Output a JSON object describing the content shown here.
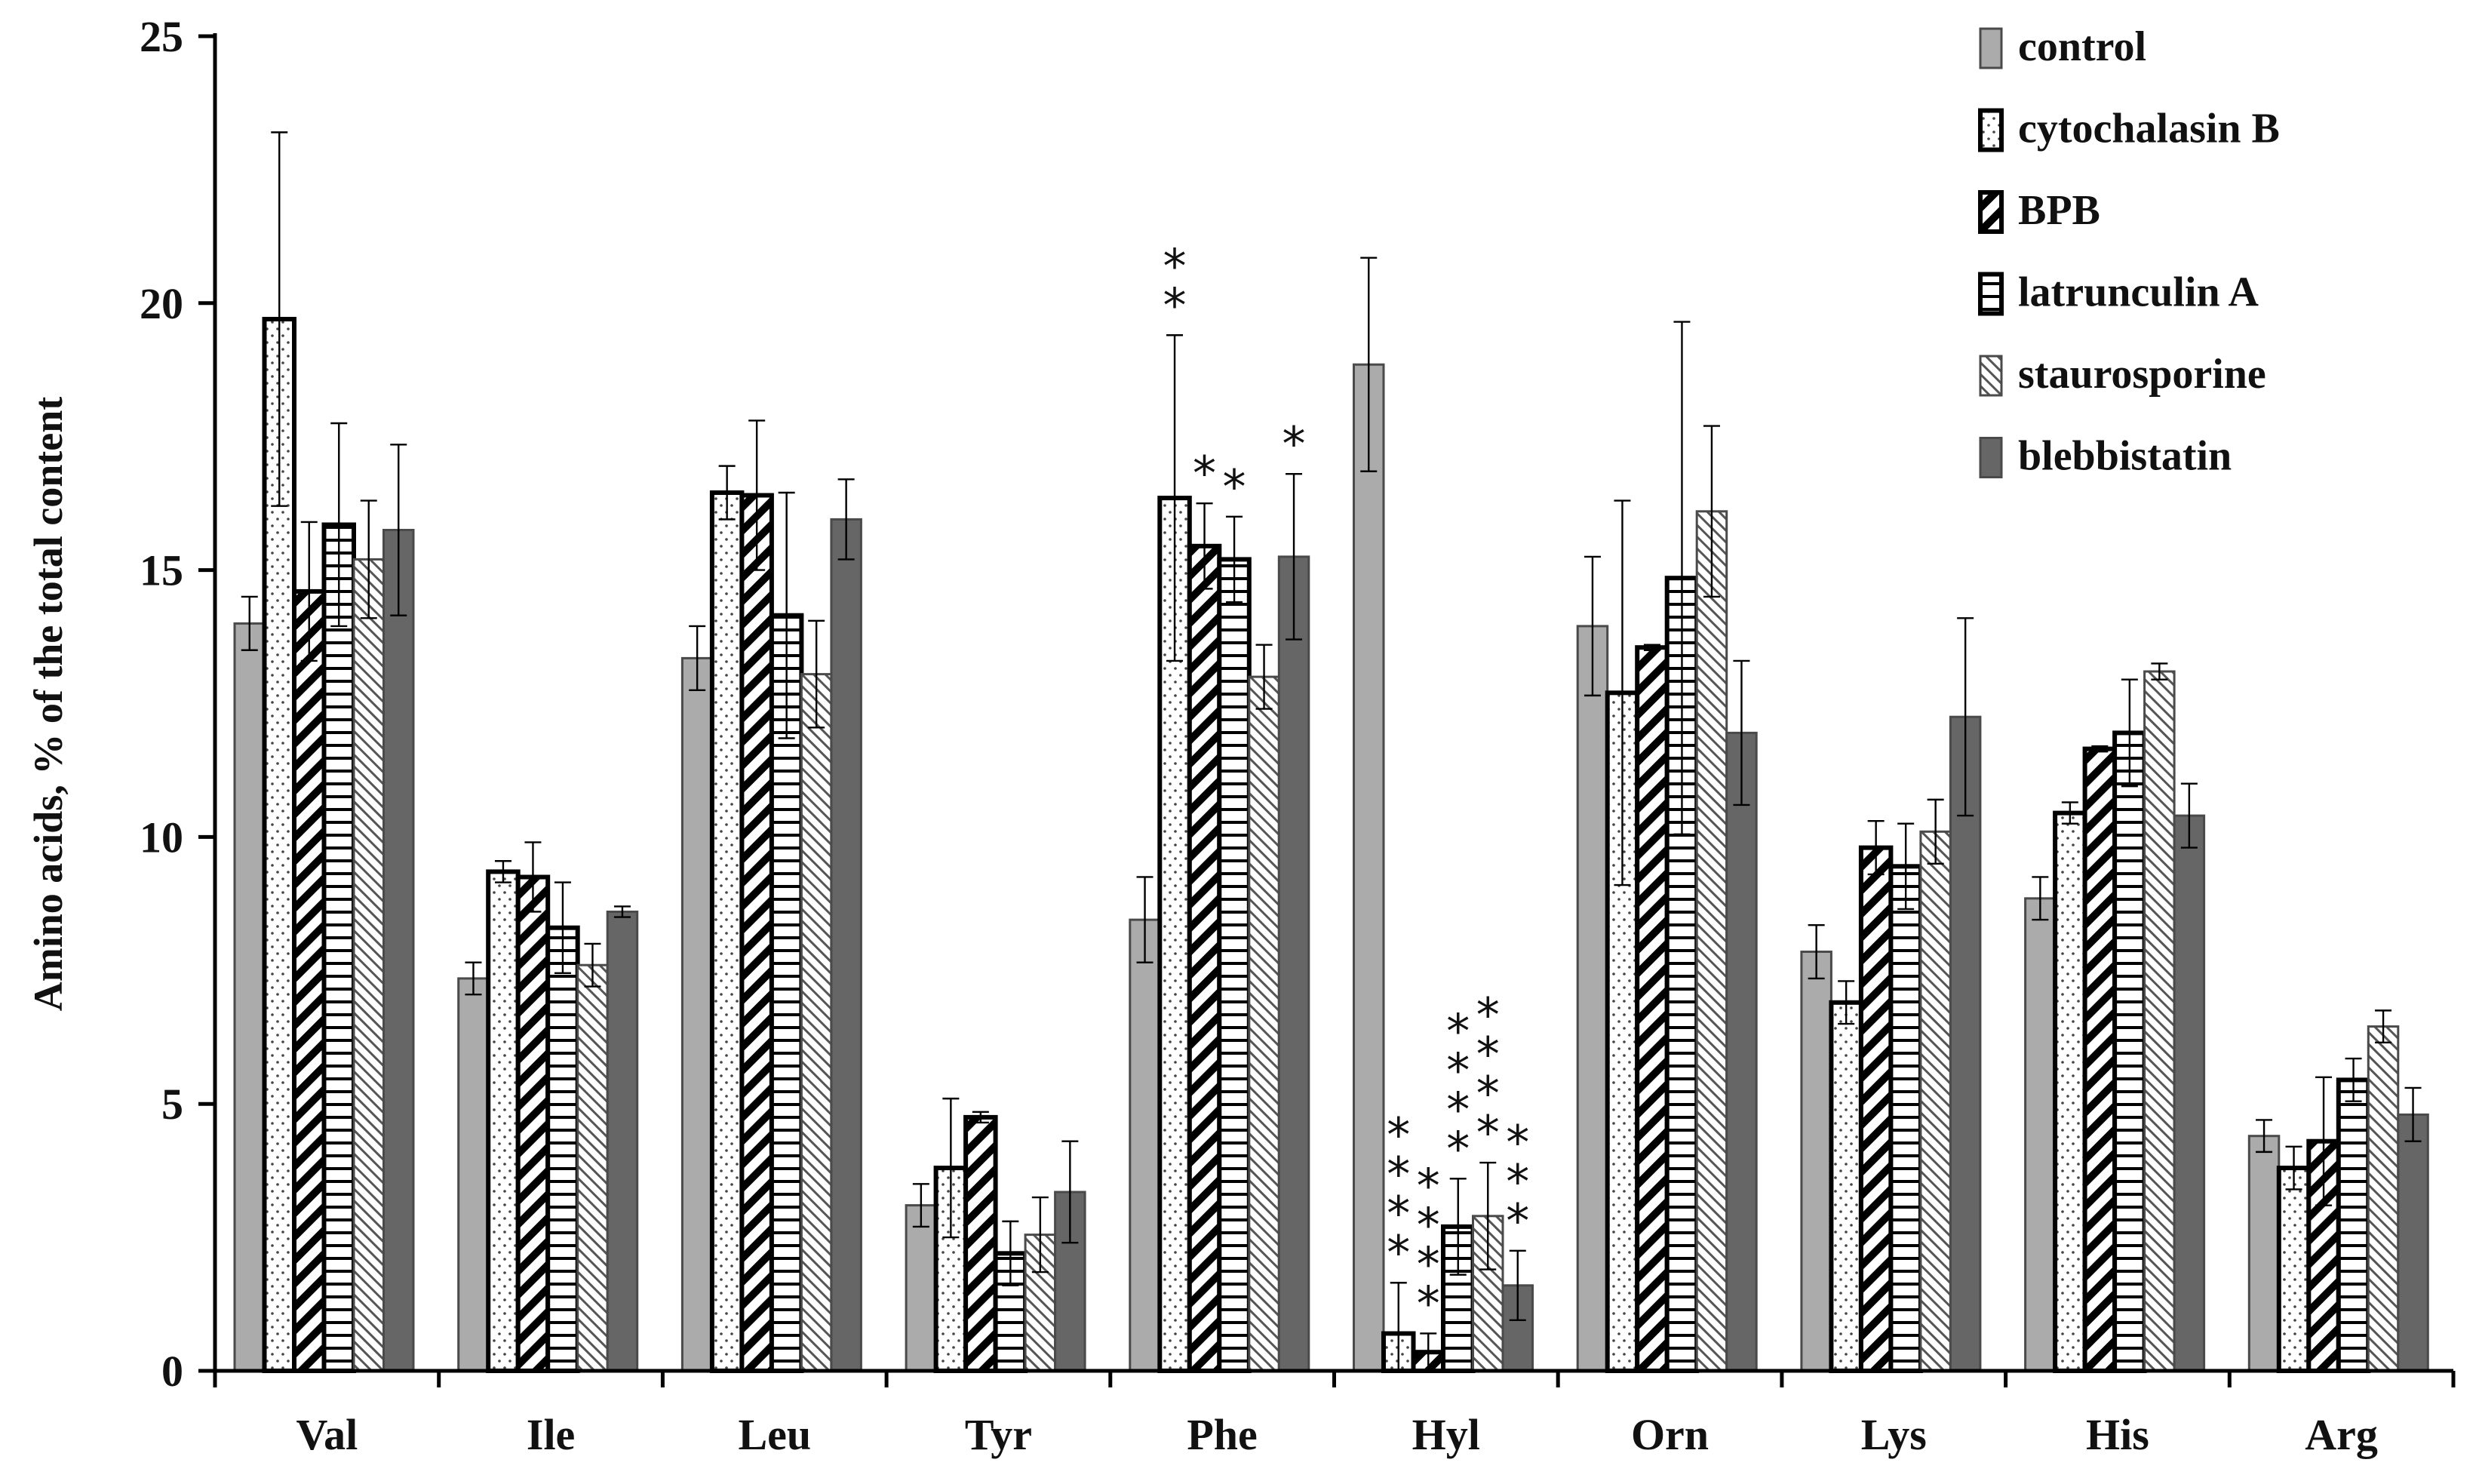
{
  "chart_data": {
    "type": "bar",
    "title": "",
    "xlabel": "",
    "ylabel": "Amino acids, % of the total content",
    "ylim": [
      0,
      25
    ],
    "yticks": [
      "0",
      "5",
      "10",
      "15",
      "20",
      "25"
    ],
    "yticks_values": [
      0,
      5,
      10,
      15,
      20,
      25
    ],
    "categories": [
      "Val",
      "Ile",
      "Leu",
      "Tyr",
      "Phe",
      "Hyl",
      "Orn",
      "Lys",
      "His",
      "Arg"
    ],
    "legend_position": "top-right",
    "series": [
      {
        "name": "control",
        "style": "solid-light",
        "color": "#ababab",
        "values": [
          14.0,
          7.35,
          13.35,
          3.1,
          8.45,
          18.85,
          13.95,
          7.85,
          8.85,
          4.4
        ],
        "errors": [
          0.5,
          0.3,
          0.6,
          0.4,
          0.8,
          2.0,
          1.3,
          0.5,
          0.4,
          0.3
        ]
      },
      {
        "name": "cytochalasin B",
        "style": "dots",
        "color": "#ffffff",
        "values": [
          19.7,
          9.35,
          16.45,
          3.8,
          16.35,
          0.7,
          12.7,
          6.9,
          10.45,
          3.8
        ],
        "errors": [
          3.5,
          0.2,
          0.5,
          1.3,
          3.05,
          0.95,
          3.6,
          0.4,
          0.2,
          0.4
        ]
      },
      {
        "name": "BPB",
        "style": "bold-diagonal",
        "color": "#000000",
        "values": [
          14.6,
          9.25,
          16.4,
          4.75,
          15.45,
          0.35,
          13.55,
          9.8,
          11.65,
          4.3
        ],
        "errors": [
          1.3,
          0.65,
          1.4,
          0.1,
          0.8,
          0.35,
          0.05,
          0.5,
          0.05,
          1.2
        ]
      },
      {
        "name": "latrunculin A",
        "style": "horizontal-lines",
        "color": "#000000",
        "values": [
          15.85,
          8.3,
          14.15,
          2.2,
          15.2,
          2.7,
          14.85,
          9.45,
          11.95,
          5.45
        ],
        "errors": [
          1.9,
          0.85,
          2.3,
          0.6,
          0.8,
          0.9,
          4.8,
          0.8,
          1.0,
          0.4
        ]
      },
      {
        "name": "staurosporine",
        "style": "thin-diagonal",
        "color": "#666666",
        "values": [
          15.2,
          7.6,
          13.05,
          2.55,
          13.0,
          2.9,
          16.1,
          10.1,
          13.1,
          6.45
        ],
        "errors": [
          1.1,
          0.4,
          1.0,
          0.7,
          0.6,
          1.0,
          1.6,
          0.6,
          0.15,
          0.3
        ]
      },
      {
        "name": "blebbistatin",
        "style": "solid-dark",
        "color": "#666666",
        "values": [
          15.75,
          8.6,
          15.95,
          3.35,
          15.25,
          1.6,
          11.95,
          12.25,
          10.4,
          4.8
        ],
        "errors": [
          1.6,
          0.1,
          0.75,
          0.95,
          1.55,
          0.65,
          1.35,
          1.85,
          0.6,
          0.5
        ]
      }
    ],
    "significance_marks": [
      {
        "category": "Phe",
        "series": "cytochalasin B",
        "text": "*"
      },
      {
        "category": "Phe",
        "series": "cytochalasin B",
        "text": "*"
      },
      {
        "category": "Phe",
        "series": "BPB",
        "text": "*"
      },
      {
        "category": "Phe",
        "series": "latrunculin A",
        "text": "*"
      },
      {
        "category": "Phe",
        "series": "blebbistatin",
        "text": "*"
      },
      {
        "category": "Hyl",
        "series": "cytochalasin B",
        "text": "*"
      },
      {
        "category": "Hyl",
        "series": "cytochalasin B",
        "text": "*"
      },
      {
        "category": "Hyl",
        "series": "cytochalasin B",
        "text": "*"
      },
      {
        "category": "Hyl",
        "series": "cytochalasin B",
        "text": "*"
      },
      {
        "category": "Hyl",
        "series": "BPB",
        "text": "*"
      },
      {
        "category": "Hyl",
        "series": "BPB",
        "text": "*"
      },
      {
        "category": "Hyl",
        "series": "BPB",
        "text": "*"
      },
      {
        "category": "Hyl",
        "series": "BPB",
        "text": "*"
      },
      {
        "category": "Hyl",
        "series": "latrunculin A",
        "text": "*"
      },
      {
        "category": "Hyl",
        "series": "latrunculin A",
        "text": "*"
      },
      {
        "category": "Hyl",
        "series": "latrunculin A",
        "text": "*"
      },
      {
        "category": "Hyl",
        "series": "latrunculin A",
        "text": "*"
      },
      {
        "category": "Hyl",
        "series": "staurosporine",
        "text": "*"
      },
      {
        "category": "Hyl",
        "series": "staurosporine",
        "text": "*"
      },
      {
        "category": "Hyl",
        "series": "staurosporine",
        "text": "*"
      },
      {
        "category": "Hyl",
        "series": "staurosporine",
        "text": "*"
      },
      {
        "category": "Hyl",
        "series": "blebbistatin",
        "text": "*"
      },
      {
        "category": "Hyl",
        "series": "blebbistatin",
        "text": "*"
      },
      {
        "category": "Hyl",
        "series": "blebbistatin",
        "text": "*"
      }
    ]
  }
}
